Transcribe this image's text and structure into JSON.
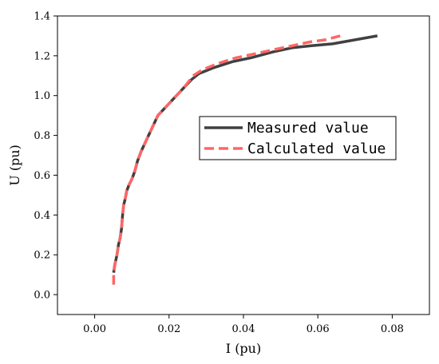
{
  "chart_data": {
    "type": "line",
    "xlabel": "I (pu)",
    "ylabel": "U (pu)",
    "xlim": [
      -0.01,
      0.09
    ],
    "ylim": [
      -0.1,
      1.4
    ],
    "xticks": [
      0.0,
      0.02,
      0.04,
      0.06,
      0.08
    ],
    "xtick_labels": [
      "0.00",
      "0.02",
      "0.04",
      "0.06",
      "0.08"
    ],
    "yticks": [
      0.0,
      0.2,
      0.4,
      0.6,
      0.8,
      1.0,
      1.2,
      1.4
    ],
    "ytick_labels": [
      "0.0",
      "0.2",
      "0.4",
      "0.6",
      "0.8",
      "1.0",
      "1.2",
      "1.4"
    ],
    "grid": false,
    "legend_position": "center-right",
    "series": [
      {
        "name": "Measured value",
        "color": "#404040",
        "style": "solid",
        "x": [
          0.0051,
          0.0054,
          0.006,
          0.0064,
          0.0068,
          0.0072,
          0.0075,
          0.0078,
          0.0082,
          0.0086,
          0.0092,
          0.01,
          0.0108,
          0.0115,
          0.0125,
          0.014,
          0.0155,
          0.017,
          0.0185,
          0.021,
          0.024,
          0.026,
          0.028,
          0.032,
          0.037,
          0.042,
          0.048,
          0.053,
          0.058,
          0.064,
          0.07,
          0.076
        ],
        "y": [
          0.11,
          0.15,
          0.2,
          0.25,
          0.28,
          0.33,
          0.4,
          0.45,
          0.48,
          0.52,
          0.55,
          0.58,
          0.62,
          0.67,
          0.72,
          0.78,
          0.84,
          0.9,
          0.93,
          0.98,
          1.04,
          1.08,
          1.11,
          1.14,
          1.17,
          1.19,
          1.22,
          1.24,
          1.25,
          1.26,
          1.28,
          1.3
        ]
      },
      {
        "name": "Calculated value",
        "color": "#ff6666",
        "style": "dashed",
        "x": [
          0.0051,
          0.0051,
          0.0054,
          0.006,
          0.0064,
          0.0068,
          0.0072,
          0.0075,
          0.0078,
          0.0082,
          0.0086,
          0.0092,
          0.01,
          0.0108,
          0.0115,
          0.0125,
          0.014,
          0.0155,
          0.017,
          0.0185,
          0.021,
          0.024,
          0.0265,
          0.029,
          0.033,
          0.038,
          0.043,
          0.048,
          0.053,
          0.058,
          0.062,
          0.066
        ],
        "y": [
          0.05,
          0.11,
          0.15,
          0.2,
          0.25,
          0.28,
          0.33,
          0.4,
          0.45,
          0.48,
          0.52,
          0.55,
          0.58,
          0.62,
          0.67,
          0.72,
          0.78,
          0.84,
          0.9,
          0.93,
          0.98,
          1.04,
          1.1,
          1.13,
          1.16,
          1.19,
          1.21,
          1.23,
          1.25,
          1.27,
          1.28,
          1.3
        ]
      }
    ]
  }
}
